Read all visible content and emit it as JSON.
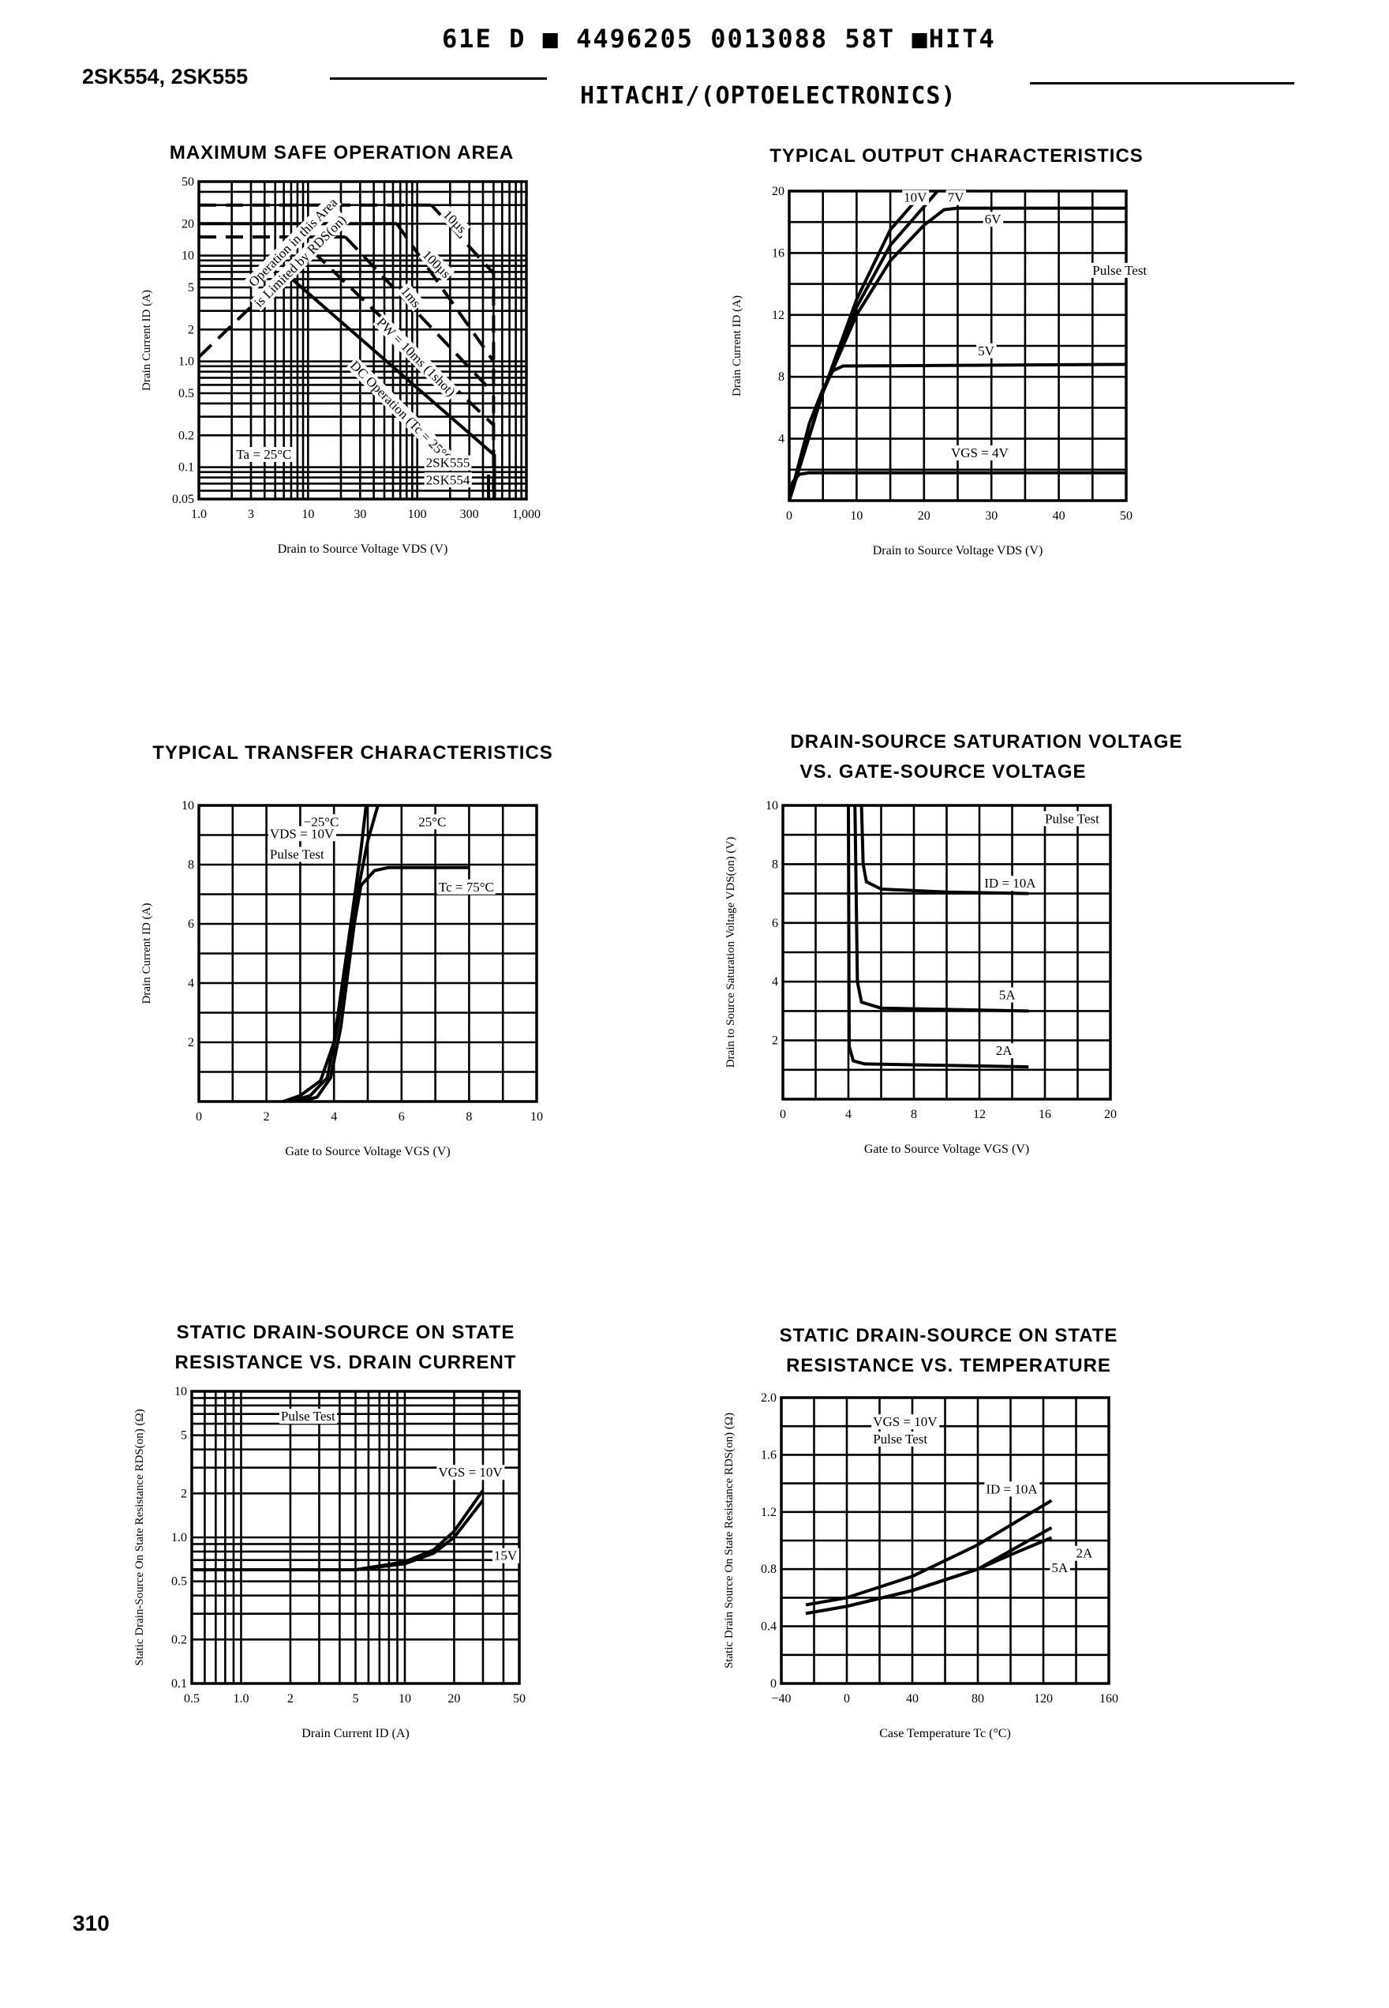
{
  "header": {
    "code_line": "61E D ■ 4496205 0013088 58T ■HIT4",
    "part_numbers": "2SK554, 2SK555",
    "manufacturer": "HITACHI/(OPTOELECTRONICS)",
    "page_number": "310"
  },
  "chart_data": [
    {
      "type": "line",
      "title": "MAXIMUM SAFE OPERATION AREA",
      "xlabel": "Drain to Source Voltage VDS (V)",
      "ylabel": "Drain Current ID (A)",
      "xscale": "log",
      "yscale": "log",
      "xlim": [
        1,
        1000
      ],
      "ylim": [
        0.05,
        50
      ],
      "grid": true,
      "xticks": [
        {
          "v": 1,
          "label": "1.0"
        },
        {
          "v": 3,
          "label": "3"
        },
        {
          "v": 10,
          "label": "10"
        },
        {
          "v": 30,
          "label": "30"
        },
        {
          "v": 100,
          "label": "100"
        },
        {
          "v": 300,
          "label": "300"
        },
        {
          "v": 1000,
          "label": "1,000"
        }
      ],
      "yticks": [
        {
          "v": 50,
          "label": "50"
        },
        {
          "v": 20,
          "label": "20"
        },
        {
          "v": 10,
          "label": "10"
        },
        {
          "v": 5,
          "label": "5"
        },
        {
          "v": 2,
          "label": "2"
        },
        {
          "v": 1,
          "label": "1.0"
        },
        {
          "v": 0.5,
          "label": "0.5"
        },
        {
          "v": 0.2,
          "label": "0.2"
        },
        {
          "v": 0.1,
          "label": "0.1"
        },
        {
          "v": 0.05,
          "label": "0.05"
        }
      ],
      "series": [
        {
          "dash": true,
          "points": [
            [
              1,
              30
            ],
            [
              135,
              30
            ]
          ]
        },
        {
          "dash": true,
          "points": [
            [
              135,
              30
            ],
            [
              500,
              6.8
            ],
            [
              500,
              0.06
            ]
          ]
        },
        {
          "dash": false,
          "points": [
            [
              1,
              20
            ],
            [
              65,
              20
            ]
          ]
        },
        {
          "dash": true,
          "points": [
            [
              65,
              20
            ],
            [
              500,
              1.0
            ]
          ]
        },
        {
          "dash": true,
          "points": [
            [
              1,
              15
            ],
            [
              22,
              15
            ]
          ]
        },
        {
          "dash": true,
          "points": [
            [
              22,
              15
            ],
            [
              500,
              0.5
            ]
          ]
        },
        {
          "dash": true,
          "points": [
            [
              11,
              11
            ],
            [
              500,
              0.25
            ]
          ]
        },
        {
          "dash": true,
          "points": [
            [
              1,
              1.1
            ],
            [
              12,
              13
            ]
          ]
        },
        {
          "dash": false,
          "points": [
            [
              6,
              7
            ],
            [
              510,
              0.13
            ],
            [
              510,
              0.05
            ]
          ]
        },
        {
          "dash": false,
          "points": [
            [
              450,
              0.085
            ],
            [
              450,
              0.05
            ]
          ]
        }
      ],
      "annotations": [
        "10µs",
        "100µs",
        "1ms",
        "PW = 10ms (1shot)",
        "DC Operation (Tc = 25°C)",
        "Operation in this Area",
        "is Limited by RDS(on)",
        "Ta = 25°C",
        "2SK555",
        "2SK554"
      ]
    },
    {
      "type": "line",
      "title": "TYPICAL OUTPUT CHARACTERISTICS",
      "xlabel": "Drain to Source Voltage VDS (V)",
      "ylabel": "Drain Current ID (A)",
      "xscale": "linear",
      "yscale": "linear",
      "xlim": [
        0,
        50
      ],
      "ylim": [
        0,
        20
      ],
      "grid": true,
      "xticks": [
        {
          "v": 0,
          "label": "0"
        },
        {
          "v": 10,
          "label": "10"
        },
        {
          "v": 20,
          "label": "20"
        },
        {
          "v": 30,
          "label": "30"
        },
        {
          "v": 40,
          "label": "40"
        },
        {
          "v": 50,
          "label": "50"
        }
      ],
      "yticks": [
        {
          "v": 0,
          "label": ""
        },
        {
          "v": 4,
          "label": "4"
        },
        {
          "v": 8,
          "label": "8"
        },
        {
          "v": 12,
          "label": "12"
        },
        {
          "v": 16,
          "label": "16"
        },
        {
          "v": 20,
          "label": "20"
        }
      ],
      "series": [
        {
          "name": "10V",
          "points": [
            [
              0,
              0
            ],
            [
              5,
              7
            ],
            [
              10,
              13
            ],
            [
              15,
              17.5
            ],
            [
              20,
              20
            ]
          ]
        },
        {
          "name": "7V",
          "points": [
            [
              0,
              0
            ],
            [
              5,
              7
            ],
            [
              10,
              12.5
            ],
            [
              15,
              16.5
            ],
            [
              22,
              20
            ]
          ]
        },
        {
          "name": "6V",
          "points": [
            [
              0,
              0
            ],
            [
              5,
              7
            ],
            [
              10,
              12
            ],
            [
              15,
              15.5
            ],
            [
              20,
              17.8
            ],
            [
              23,
              18.8
            ],
            [
              25,
              18.9
            ],
            [
              50,
              18.9
            ]
          ]
        },
        {
          "name": "5V",
          "points": [
            [
              0,
              0
            ],
            [
              3,
              5
            ],
            [
              5,
              7.2
            ],
            [
              6.5,
              8.4
            ],
            [
              8,
              8.7
            ],
            [
              50,
              8.8
            ]
          ]
        },
        {
          "name": "VGS = 4V",
          "points": [
            [
              0,
              0
            ],
            [
              0.5,
              1.2
            ],
            [
              1.5,
              1.7
            ],
            [
              3,
              1.8
            ],
            [
              50,
              1.8
            ]
          ]
        }
      ],
      "annotations": [
        "10V",
        "7V",
        "6V",
        "Pulse Test",
        "5V",
        "VGS = 4V"
      ]
    },
    {
      "type": "line",
      "title": "TYPICAL TRANSFER CHARACTERISTICS",
      "xlabel": "Gate to Source Voltage VGS (V)",
      "ylabel": "Drain Current ID (A)",
      "xscale": "linear",
      "yscale": "linear",
      "xlim": [
        0,
        10
      ],
      "ylim": [
        0,
        10
      ],
      "grid": true,
      "xticks": [
        {
          "v": 0,
          "label": "0"
        },
        {
          "v": 2,
          "label": "2"
        },
        {
          "v": 4,
          "label": "4"
        },
        {
          "v": 6,
          "label": "6"
        },
        {
          "v": 8,
          "label": "8"
        },
        {
          "v": 10,
          "label": "10"
        }
      ],
      "yticks": [
        {
          "v": 2,
          "label": "2"
        },
        {
          "v": 4,
          "label": "4"
        },
        {
          "v": 6,
          "label": "6"
        },
        {
          "v": 8,
          "label": "8"
        },
        {
          "v": 10,
          "label": "10"
        }
      ],
      "series": [
        {
          "name": "−25°C",
          "points": [
            [
              2.5,
              0
            ],
            [
              3,
              0.2
            ],
            [
              3.6,
              0.7
            ],
            [
              4,
              2
            ],
            [
              4.5,
              6
            ],
            [
              4.8,
              8.5
            ],
            [
              4.95,
              10
            ]
          ]
        },
        {
          "name": "25°C",
          "points": [
            [
              2.7,
              0
            ],
            [
              3.3,
              0.2
            ],
            [
              3.8,
              0.8
            ],
            [
              4.1,
              2.5
            ],
            [
              4.6,
              6.5
            ],
            [
              5,
              8.8
            ],
            [
              5.3,
              10
            ]
          ]
        },
        {
          "name": "Tc = 75°C",
          "points": [
            [
              3,
              0
            ],
            [
              3.5,
              0.15
            ],
            [
              3.9,
              0.8
            ],
            [
              4.2,
              2.5
            ],
            [
              4.6,
              6
            ],
            [
              4.8,
              7.3
            ],
            [
              5.2,
              7.8
            ],
            [
              5.6,
              7.9
            ],
            [
              8,
              7.9
            ]
          ]
        }
      ],
      "annotations": [
        "−25°C",
        "25°C",
        "VDS = 10V",
        "Pulse Test",
        "Tc = 75°C"
      ]
    },
    {
      "type": "line",
      "title": "DRAIN-SOURCE SATURATION VOLTAGE",
      "subtitle": "VS. GATE-SOURCE VOLTAGE",
      "xlabel": "Gate to Source Voltage VGS (V)",
      "ylabel": "Drain to Source Saturation Voltage VDS(on) (V)",
      "xscale": "linear",
      "yscale": "linear",
      "xlim": [
        0,
        20
      ],
      "ylim": [
        0,
        10
      ],
      "grid": true,
      "xticks": [
        {
          "v": 0,
          "label": "0"
        },
        {
          "v": 4,
          "label": "4"
        },
        {
          "v": 8,
          "label": "8"
        },
        {
          "v": 12,
          "label": "12"
        },
        {
          "v": 16,
          "label": "16"
        },
        {
          "v": 20,
          "label": "20"
        }
      ],
      "yticks": [
        {
          "v": 2,
          "label": "2"
        },
        {
          "v": 4,
          "label": "4"
        },
        {
          "v": 6,
          "label": "6"
        },
        {
          "v": 8,
          "label": "8"
        },
        {
          "v": 10,
          "label": "10"
        }
      ],
      "series": [
        {
          "name": "ID = 10A",
          "points": [
            [
              4.8,
              10
            ],
            [
              4.9,
              8
            ],
            [
              5.1,
              7.4
            ],
            [
              6,
              7.15
            ],
            [
              10,
              7.05
            ],
            [
              15,
              7.0
            ]
          ]
        },
        {
          "name": "5A",
          "points": [
            [
              4.4,
              10
            ],
            [
              4.55,
              4
            ],
            [
              4.8,
              3.3
            ],
            [
              6,
              3.1
            ],
            [
              15,
              3.0
            ]
          ]
        },
        {
          "name": "2A",
          "points": [
            [
              4.0,
              10
            ],
            [
              4.05,
              1.8
            ],
            [
              4.3,
              1.3
            ],
            [
              5,
              1.2
            ],
            [
              15,
              1.1
            ]
          ]
        }
      ],
      "annotations": [
        "Pulse Test",
        "ID = 10A",
        "5A",
        "2A"
      ]
    },
    {
      "type": "line",
      "title": "STATIC DRAIN-SOURCE ON STATE",
      "subtitle": "RESISTANCE VS. DRAIN CURRENT",
      "xlabel": "Drain Current ID (A)",
      "ylabel": "Static Drain-Source On State Resistance RDS(on) (Ω)",
      "xscale": "log",
      "yscale": "log",
      "xlim": [
        0.5,
        50
      ],
      "ylim": [
        0.1,
        10
      ],
      "grid": true,
      "xticks": [
        {
          "v": 0.5,
          "label": "0.5"
        },
        {
          "v": 1,
          "label": "1.0"
        },
        {
          "v": 2,
          "label": "2"
        },
        {
          "v": 5,
          "label": "5"
        },
        {
          "v": 10,
          "label": "10"
        },
        {
          "v": 20,
          "label": "20"
        },
        {
          "v": 50,
          "label": "50"
        }
      ],
      "yticks": [
        {
          "v": 10,
          "label": "10"
        },
        {
          "v": 5,
          "label": "5"
        },
        {
          "v": 2,
          "label": "2"
        },
        {
          "v": 1,
          "label": "1.0"
        },
        {
          "v": 0.5,
          "label": "0.5"
        },
        {
          "v": 0.2,
          "label": "0.2"
        },
        {
          "v": 0.1,
          "label": "0.1"
        }
      ],
      "series": [
        {
          "name": "VGS = 10V",
          "points": [
            [
              0.5,
              0.6
            ],
            [
              5,
              0.6
            ],
            [
              10,
              0.68
            ],
            [
              15,
              0.82
            ],
            [
              20,
              1.1
            ],
            [
              30,
              2.1
            ]
          ]
        },
        {
          "name": "15V",
          "points": [
            [
              0.5,
              0.6
            ],
            [
              5,
              0.6
            ],
            [
              10,
              0.66
            ],
            [
              15,
              0.78
            ],
            [
              20,
              1.0
            ],
            [
              30,
              1.8
            ]
          ]
        }
      ],
      "annotations": [
        "Pulse Test",
        "VGS = 10V",
        "15V"
      ]
    },
    {
      "type": "line",
      "title": "STATIC DRAIN-SOURCE ON STATE",
      "subtitle": "RESISTANCE VS. TEMPERATURE",
      "xlabel": "Case Temperature Tc (°C)",
      "ylabel": "Static Drain Source On State Resistance RDS(on) (Ω)",
      "xscale": "linear",
      "yscale": "linear",
      "xlim": [
        -40,
        160
      ],
      "ylim": [
        0,
        2.0
      ],
      "grid": true,
      "xticks": [
        {
          "v": -40,
          "label": "−40"
        },
        {
          "v": 0,
          "label": "0"
        },
        {
          "v": 40,
          "label": "40"
        },
        {
          "v": 80,
          "label": "80"
        },
        {
          "v": 120,
          "label": "120"
        },
        {
          "v": 160,
          "label": "160"
        }
      ],
      "yticks": [
        {
          "v": 0,
          "label": "0"
        },
        {
          "v": 0.4,
          "label": "0.4"
        },
        {
          "v": 0.8,
          "label": "0.8"
        },
        {
          "v": 1.2,
          "label": "1.2"
        },
        {
          "v": 1.6,
          "label": "1.6"
        },
        {
          "v": 2.0,
          "label": "2.0"
        }
      ],
      "series": [
        {
          "name": "ID = 10A",
          "points": [
            [
              -25,
              0.55
            ],
            [
              0,
              0.6
            ],
            [
              40,
              0.75
            ],
            [
              80,
              0.97
            ],
            [
              125,
              1.28
            ]
          ]
        },
        {
          "name": "5A",
          "points": [
            [
              -25,
              0.49
            ],
            [
              0,
              0.54
            ],
            [
              40,
              0.65
            ],
            [
              80,
              0.8
            ],
            [
              125,
              1.09
            ]
          ]
        },
        {
          "name": "2A",
          "points": [
            [
              -25,
              0.49
            ],
            [
              0,
              0.54
            ],
            [
              40,
              0.65
            ],
            [
              80,
              0.8
            ],
            [
              100,
              0.9
            ],
            [
              125,
              1.02
            ]
          ]
        }
      ],
      "annotations": [
        "VGS = 10V",
        "Pulse Test",
        "ID = 10A",
        "2A",
        "5A"
      ]
    }
  ]
}
